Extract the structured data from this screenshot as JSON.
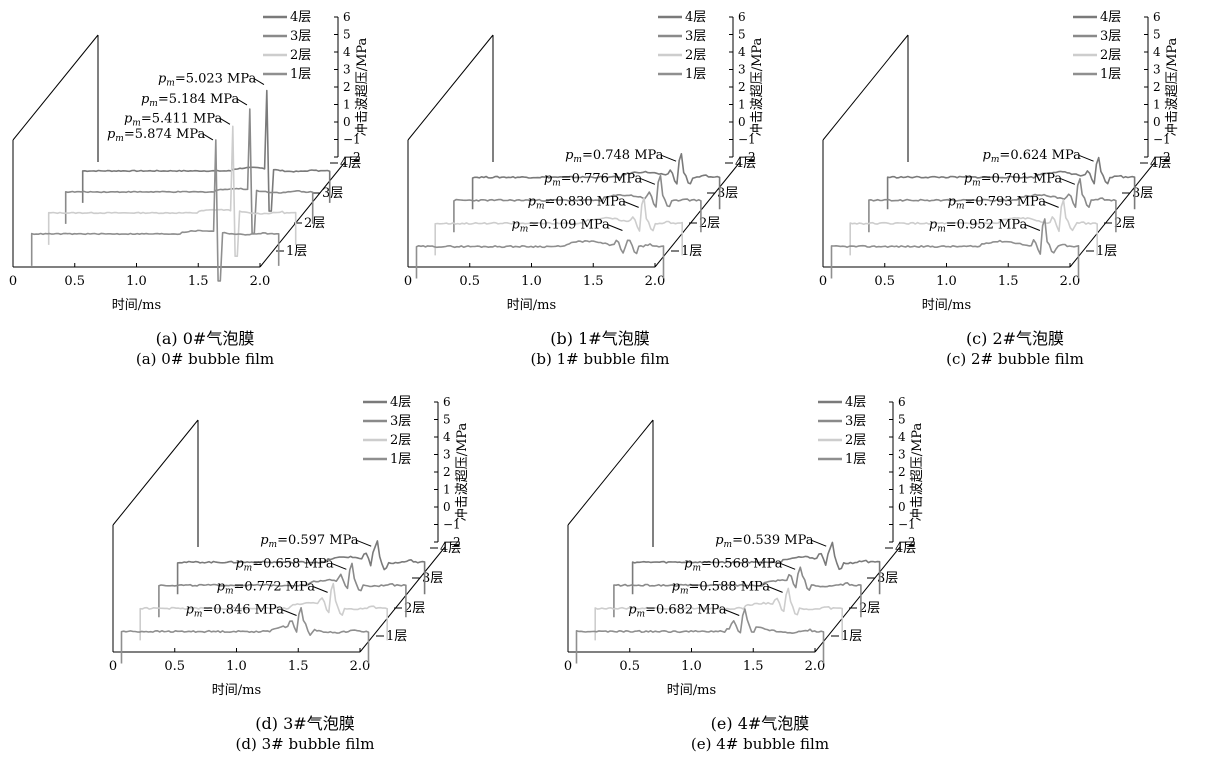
{
  "figure": {
    "x_axis_label": "时间/ms",
    "z_axis_label": "冲击波超压/MPa",
    "x_ticks": [
      "0",
      "0.5",
      "1.0",
      "1.5",
      "2.0"
    ],
    "z_ticks": [
      "6",
      "5",
      "4",
      "3",
      "2",
      "1",
      "0",
      "−1",
      "−2"
    ],
    "layer_labels": [
      "1层",
      "2层",
      "3层",
      "4层"
    ],
    "legend": [
      "4层",
      "3层",
      "2层",
      "1层"
    ],
    "series_colors": {
      "1层": "#8f8f8f",
      "2层": "#cdcdcd",
      "3层": "#8a8a8a",
      "4层": "#7a7a7a"
    },
    "pm_prefix": "p",
    "pm_subscript": "m"
  },
  "chart_data": [
    {
      "type": "line",
      "panel": "a",
      "caption_cn": "(a) 0#气泡膜",
      "caption_en": "(a) 0# bubble film",
      "xlim": [
        0,
        2.0
      ],
      "zlim": [
        -2,
        6
      ],
      "series": [
        {
          "name": "4层",
          "peak_time": 1.5,
          "peak_value": 5.023,
          "annotation": "=5.023 MPa"
        },
        {
          "name": "3层",
          "peak_time": 1.5,
          "peak_value": 5.184,
          "annotation": "=5.184 MPa"
        },
        {
          "name": "2层",
          "peak_time": 1.5,
          "peak_value": 5.411,
          "annotation": "=5.411 MPa"
        },
        {
          "name": "1层",
          "peak_time": 1.5,
          "peak_value": 5.874,
          "annotation": "=5.874 MPa"
        }
      ]
    },
    {
      "type": "line",
      "panel": "b",
      "caption_cn": "(b) 1#气泡膜",
      "caption_en": "(b) 1# bubble film",
      "xlim": [
        0,
        2.0
      ],
      "zlim": [
        -2,
        6
      ],
      "series": [
        {
          "name": "4层",
          "peak_time": 1.68,
          "peak_value": 0.748,
          "annotation": "=0.748 MPa"
        },
        {
          "name": "3层",
          "peak_time": 1.66,
          "peak_value": 0.776,
          "annotation": "=0.776 MPa"
        },
        {
          "name": "2层",
          "peak_time": 1.68,
          "peak_value": 0.83,
          "annotation": "=0.830 MPa"
        },
        {
          "name": "1层",
          "peak_time": 1.7,
          "peak_value": 0.109,
          "annotation": "=0.109 MPa"
        }
      ]
    },
    {
      "type": "line",
      "panel": "c",
      "caption_cn": "(c) 2#气泡膜",
      "caption_en": "(c) 2# bubble film",
      "xlim": [
        0,
        2.0
      ],
      "zlim": [
        -2,
        6
      ],
      "series": [
        {
          "name": "4层",
          "peak_time": 1.7,
          "peak_value": 0.624,
          "annotation": "=0.624 MPa"
        },
        {
          "name": "3层",
          "peak_time": 1.7,
          "peak_value": 0.701,
          "annotation": "=0.701 MPa"
        },
        {
          "name": "2层",
          "peak_time": 1.72,
          "peak_value": 0.793,
          "annotation": "=0.793 MPa"
        },
        {
          "name": "1层",
          "peak_time": 1.72,
          "peak_value": 0.952,
          "annotation": "=0.952 MPa"
        }
      ]
    },
    {
      "type": "line",
      "panel": "d",
      "caption_cn": "(d) 3#气泡膜",
      "caption_en": "(d) 3# bubble film",
      "xlim": [
        0,
        2.0
      ],
      "zlim": [
        -2,
        6
      ],
      "series": [
        {
          "name": "4层",
          "peak_time": 1.6,
          "peak_value": 0.597,
          "annotation": "=0.597 MPa"
        },
        {
          "name": "3层",
          "peak_time": 1.55,
          "peak_value": 0.658,
          "annotation": "=0.658 MPa"
        },
        {
          "name": "2层",
          "peak_time": 1.55,
          "peak_value": 0.772,
          "annotation": "=0.772 MPa"
        },
        {
          "name": "1层",
          "peak_time": 1.45,
          "peak_value": 0.846,
          "annotation": "=0.846 MPa"
        }
      ]
    },
    {
      "type": "line",
      "panel": "e",
      "caption_cn": "(e) 4#气泡膜",
      "caption_en": "(e) 4# bubble film",
      "xlim": [
        0,
        2.0
      ],
      "zlim": [
        -2,
        6
      ],
      "series": [
        {
          "name": "4层",
          "peak_time": 1.6,
          "peak_value": 0.539,
          "annotation": "=0.539 MPa"
        },
        {
          "name": "3层",
          "peak_time": 1.5,
          "peak_value": 0.568,
          "annotation": "=0.568 MPa"
        },
        {
          "name": "2层",
          "peak_time": 1.55,
          "peak_value": 0.588,
          "annotation": "=0.588 MPa"
        },
        {
          "name": "1层",
          "peak_time": 1.35,
          "peak_value": 0.682,
          "annotation": "=0.682 MPa"
        }
      ]
    }
  ]
}
